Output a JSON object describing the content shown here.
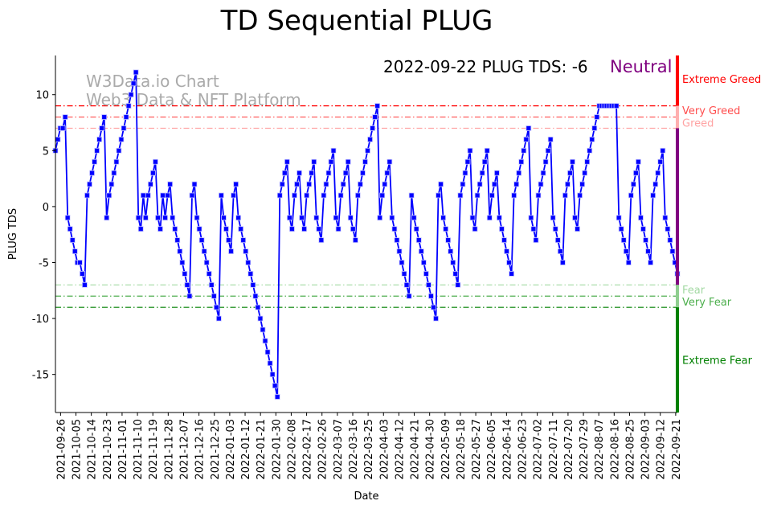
{
  "chart_data": {
    "type": "line",
    "title": "TD Sequential PLUG",
    "xlabel": "Date",
    "ylabel": "PLUG TDS",
    "x_start": "2021-09-23",
    "x_end": "2022-09-22",
    "xlim": [
      "2021-09-23",
      "2022-09-22"
    ],
    "ylim": [
      -18.4,
      13.5
    ],
    "yticks": [
      10,
      5,
      0,
      -5,
      -10,
      -15
    ],
    "xticks": [
      "2021-09-26",
      "2021-10-05",
      "2021-10-14",
      "2021-10-23",
      "2021-11-01",
      "2021-11-10",
      "2021-11-19",
      "2021-11-28",
      "2021-12-07",
      "2021-12-16",
      "2021-12-25",
      "2022-01-03",
      "2022-01-12",
      "2022-01-21",
      "2022-01-30",
      "2022-02-08",
      "2022-02-17",
      "2022-02-26",
      "2022-03-07",
      "2022-03-16",
      "2022-03-25",
      "2022-04-03",
      "2022-04-12",
      "2022-04-21",
      "2022-04-30",
      "2022-05-09",
      "2022-05-18",
      "2022-05-27",
      "2022-06-05",
      "2022-06-14",
      "2022-06-23",
      "2022-07-02",
      "2022-07-11",
      "2022-07-20",
      "2022-07-29",
      "2022-08-07",
      "2022-08-16",
      "2022-08-25",
      "2022-09-03",
      "2022-09-12",
      "2022-09-21"
    ],
    "grid": false,
    "series": [
      {
        "name": "PLUG TDS",
        "color": "#0000ff",
        "marker": "square",
        "values": [
          5,
          6,
          7,
          7,
          8,
          -1,
          -2,
          -3,
          -4,
          -5,
          -5,
          -6,
          -7,
          1,
          2,
          3,
          4,
          5,
          6,
          7,
          8,
          -1,
          1,
          2,
          3,
          4,
          5,
          6,
          7,
          8,
          9,
          10,
          11,
          12,
          -1,
          -2,
          1,
          -1,
          1,
          2,
          3,
          4,
          -1,
          -2,
          1,
          -1,
          1,
          2,
          -1,
          -2,
          -3,
          -4,
          -5,
          -6,
          -7,
          -8,
          1,
          2,
          -1,
          -2,
          -3,
          -4,
          -5,
          -6,
          -7,
          -8,
          -9,
          -10,
          1,
          -1,
          -2,
          -3,
          -4,
          1,
          2,
          -1,
          -2,
          -3,
          -4,
          -5,
          -6,
          -7,
          -8,
          -9,
          -10,
          -11,
          -12,
          -13,
          -14,
          -15,
          -16,
          -17,
          1,
          2,
          3,
          4,
          -1,
          -2,
          1,
          2,
          3,
          -1,
          -2,
          1,
          2,
          3,
          4,
          -1,
          -2,
          -3,
          1,
          2,
          3,
          4,
          5,
          -1,
          -2,
          1,
          2,
          3,
          4,
          -1,
          -2,
          -3,
          1,
          2,
          3,
          4,
          5,
          6,
          7,
          8,
          9,
          -1,
          1,
          2,
          3,
          4,
          -1,
          -2,
          -3,
          -4,
          -5,
          -6,
          -7,
          -8,
          1,
          -1,
          -2,
          -3,
          -4,
          -5,
          -6,
          -7,
          -8,
          -9,
          -10,
          1,
          2,
          -1,
          -2,
          -3,
          -4,
          -5,
          -6,
          -7,
          1,
          2,
          3,
          4,
          5,
          -1,
          -2,
          1,
          2,
          3,
          4,
          5,
          -1,
          1,
          2,
          3,
          -1,
          -2,
          -3,
          -4,
          -5,
          -6,
          1,
          2,
          3,
          4,
          5,
          6,
          7,
          -1,
          -2,
          -3,
          1,
          2,
          3,
          4,
          5,
          6,
          -1,
          -2,
          -3,
          -4,
          -5,
          1,
          2,
          3,
          4,
          -1,
          -2,
          1,
          2,
          3,
          4,
          5,
          6,
          7,
          8,
          9,
          9,
          9,
          9,
          9,
          9,
          9,
          9,
          -1,
          -2,
          -3,
          -4,
          -5,
          1,
          2,
          3,
          4,
          -1,
          -2,
          -3,
          -4,
          -5,
          1,
          2,
          3,
          4,
          5,
          -1,
          -2,
          -3,
          -4,
          -5,
          -6
        ]
      }
    ],
    "thresholds": [
      {
        "value": 9,
        "label": "Extreme Greed",
        "color": "#ff0000",
        "label_value": 11.4
      },
      {
        "value": 8,
        "label": "Very Greed",
        "color": "#ff4d4d",
        "label_value": 8.6
      },
      {
        "value": 7,
        "label": "Greed",
        "color": "#ffa3a3",
        "label_value": 7.5
      },
      {
        "value": -7,
        "label": "Fear",
        "color": "#a3d9a3",
        "label_value": -7.4
      },
      {
        "value": -8,
        "label": "Very Fear",
        "color": "#4daf4d",
        "label_value": -8.5
      },
      {
        "value": -9,
        "label": "Extreme Fear",
        "color": "#008000",
        "label_value": -13.7
      }
    ],
    "status_bar": [
      {
        "from": 9,
        "to": 13.5,
        "color": "#ff0000"
      },
      {
        "from": 7,
        "to": 9,
        "color": "#ffb0b0"
      },
      {
        "from": -7,
        "to": 7,
        "color": "#800080"
      },
      {
        "from": -9,
        "to": -7,
        "color": "#8fce8f"
      },
      {
        "from": -18.4,
        "to": -9,
        "color": "#008000"
      }
    ],
    "annotation": "2022-09-22 PLUG TDS: -6",
    "status_label": "Neutral",
    "status_color": "#800080",
    "watermark": [
      "W3Data.io Chart",
      "Web3 Data & NFT Platform"
    ]
  }
}
